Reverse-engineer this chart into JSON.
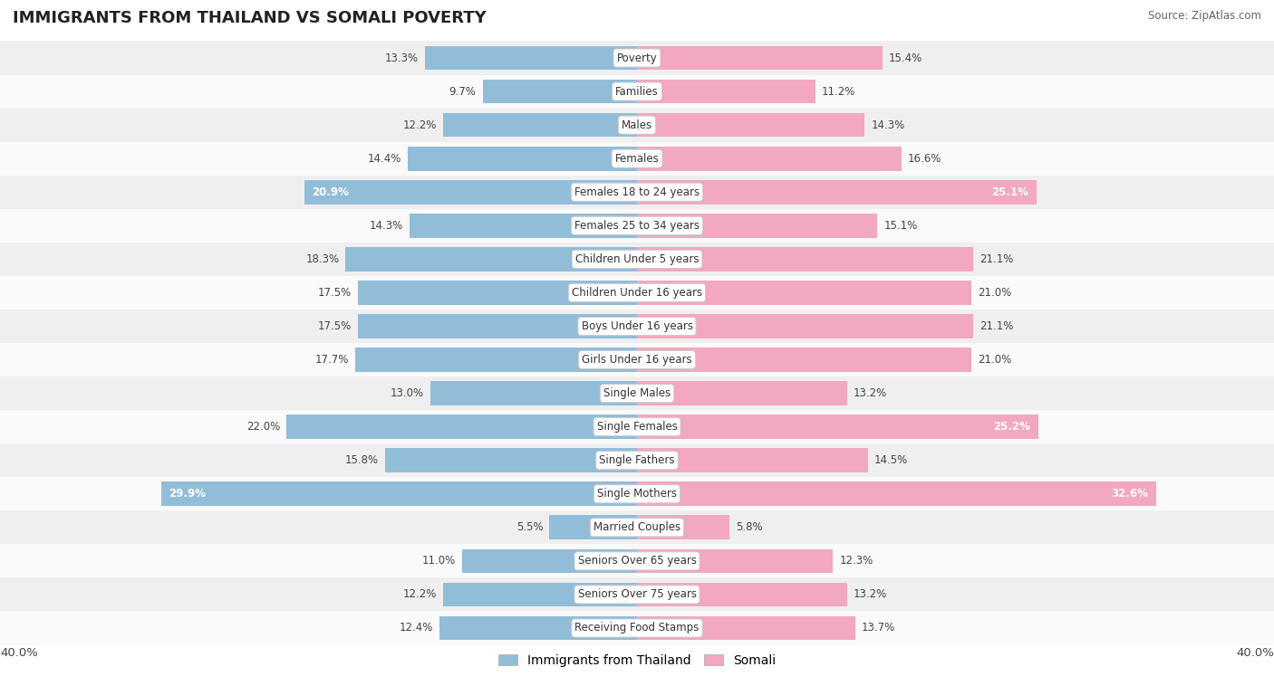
{
  "title": "IMMIGRANTS FROM THAILAND VS SOMALI POVERTY",
  "source": "Source: ZipAtlas.com",
  "categories": [
    "Poverty",
    "Families",
    "Males",
    "Females",
    "Females 18 to 24 years",
    "Females 25 to 34 years",
    "Children Under 5 years",
    "Children Under 16 years",
    "Boys Under 16 years",
    "Girls Under 16 years",
    "Single Males",
    "Single Females",
    "Single Fathers",
    "Single Mothers",
    "Married Couples",
    "Seniors Over 65 years",
    "Seniors Over 75 years",
    "Receiving Food Stamps"
  ],
  "thailand_values": [
    13.3,
    9.7,
    12.2,
    14.4,
    20.9,
    14.3,
    18.3,
    17.5,
    17.5,
    17.7,
    13.0,
    22.0,
    15.8,
    29.9,
    5.5,
    11.0,
    12.2,
    12.4
  ],
  "somali_values": [
    15.4,
    11.2,
    14.3,
    16.6,
    25.1,
    15.1,
    21.1,
    21.0,
    21.1,
    21.0,
    13.2,
    25.2,
    14.5,
    32.6,
    5.8,
    12.3,
    13.2,
    13.7
  ],
  "thailand_color": "#92bdd9",
  "somali_color": "#f2a8be",
  "highlight_thailand": [
    4,
    13
  ],
  "highlight_somali": [
    4,
    11,
    13
  ],
  "background_row_even": "#efefef",
  "background_row_odd": "#fafafa",
  "max_value": 40.0,
  "legend_thailand": "Immigrants from Thailand",
  "legend_somali": "Somali",
  "title_fontsize": 13,
  "bar_fontsize": 8.5,
  "label_fontsize": 8.5
}
